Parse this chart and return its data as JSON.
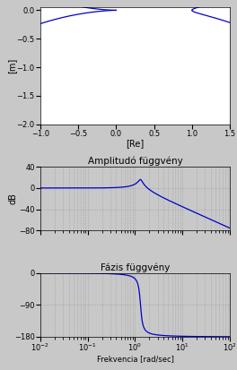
{
  "title_nyquist": "",
  "xlabel_nyquist": "[Re]",
  "ylabel_nyquist": "[m]",
  "xlim_nyquist": [
    -1,
    1.5
  ],
  "ylim_nyquist": [
    -2,
    0.05
  ],
  "nyquist_color": "#0000cc",
  "title_amp": "Amplitudó függvény",
  "ylabel_amp": "dB",
  "ylim_amp": [
    -80,
    40
  ],
  "amp_color": "#0000cc",
  "title_phase": "Fázis függvény",
  "xlabel_phase": "Frekvencia [rad/sec]",
  "ylabel_phase": "",
  "ylim_phase": [
    -180,
    0
  ],
  "phase_color": "#0000cc",
  "freq_min": 0.01,
  "freq_max": 100,
  "wn": 1.3,
  "zeta": 0.08,
  "background_color": "#c8c8c8",
  "grid_color": "#888888",
  "white_bg": "#ffffff"
}
